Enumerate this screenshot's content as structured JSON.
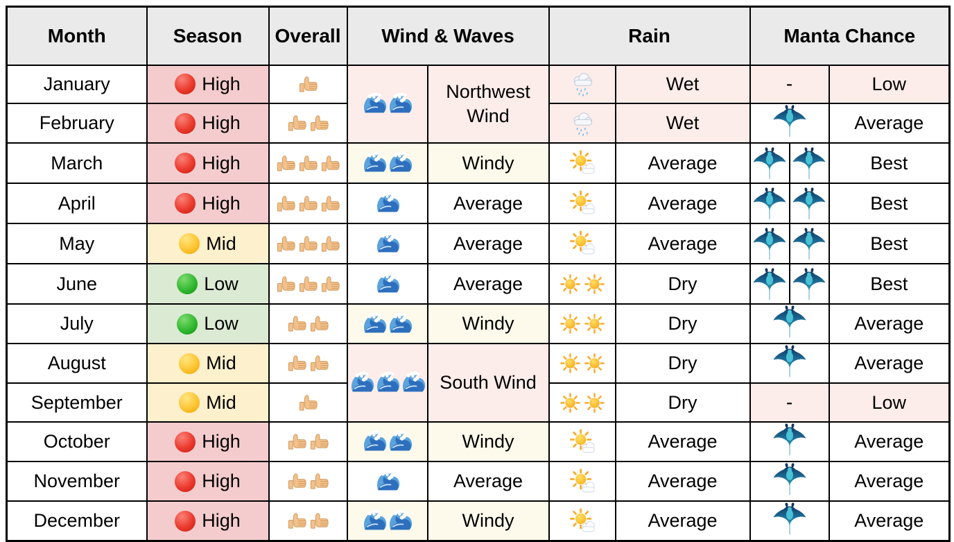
{
  "chart_data": {
    "type": "table",
    "columns": [
      "Month",
      "Season",
      "Overall",
      "Wind & Waves",
      "Rain",
      "Manta Chance"
    ],
    "rows": [
      [
        "January",
        "High",
        "1 thumb",
        "2 waves - Northwest Wind",
        "Wet",
        "Low (-)"
      ],
      [
        "February",
        "High",
        "2 thumbs",
        "2 waves - Northwest Wind",
        "Wet",
        "Average (1 manta)"
      ],
      [
        "March",
        "High",
        "3 thumbs",
        "2 waves - Windy",
        "Average",
        "Best (2 mantas)"
      ],
      [
        "April",
        "High",
        "3 thumbs",
        "1 wave - Average",
        "Average",
        "Best (2 mantas)"
      ],
      [
        "May",
        "Mid",
        "3 thumbs",
        "1 wave - Average",
        "Average",
        "Best (2 mantas)"
      ],
      [
        "June",
        "Low",
        "3 thumbs",
        "1 wave - Average",
        "Dry",
        "Best (2 mantas)"
      ],
      [
        "July",
        "Low",
        "2 thumbs",
        "2 waves - Windy",
        "Dry",
        "Average (1 manta)"
      ],
      [
        "August",
        "Mid",
        "2 thumbs",
        "3 waves - South Wind",
        "Dry",
        "Average (1 manta)"
      ],
      [
        "September",
        "Mid",
        "1 thumb",
        "3 waves - South Wind",
        "Dry",
        "Low (-)"
      ],
      [
        "October",
        "High",
        "2 thumbs",
        "2 waves - Windy",
        "Average",
        "Average (1 manta)"
      ],
      [
        "November",
        "High",
        "2 thumbs",
        "1 wave - Average",
        "Average",
        "Average (1 manta)"
      ],
      [
        "December",
        "High",
        "2 thumbs",
        "2 waves - Windy",
        "Average",
        "Average (1 manta)"
      ]
    ]
  },
  "table": {
    "headers": [
      {
        "label": "Month"
      },
      {
        "label": "Season"
      },
      {
        "label": "Overall"
      },
      {
        "label": "Wind & Waves"
      },
      {
        "label": "Rain"
      },
      {
        "label": "Manta Chance"
      }
    ],
    "colors": {
      "header_bg": "#eaeaea",
      "border": "#000000",
      "season_bg": {
        "High": "#f4cccd",
        "Mid": "#fdf0cd",
        "Low": "#dbead3"
      },
      "season_dot": {
        "High": "#e02b20",
        "Mid": "#fcc12c",
        "Low": "#28b428"
      },
      "tint_pink": "#fcedea",
      "tint_cream": "#fdfaeb"
    },
    "icon_names": {
      "High": "red-circle-icon",
      "Mid": "yellow-circle-icon",
      "Low": "green-circle-icon",
      "overall": "thumbs-up-icon",
      "wave": "water-wave-icon",
      "wet": "rain-cloud-icon",
      "average_rain": "sun-behind-cloud-icon",
      "dry": "sun-icon",
      "manta": "manta-ray-icon"
    },
    "rows": [
      {
        "month": "January",
        "season": "High",
        "overall": 1,
        "wind": {
          "span": 2,
          "waves": 2,
          "label": "Northwest Wind",
          "tint": "pink"
        },
        "rain": {
          "icon": "wet",
          "label": "Wet",
          "tint": "pink"
        },
        "manta": {
          "count": 0,
          "placeholder": "-",
          "label": "Low",
          "tint": "pink"
        }
      },
      {
        "month": "February",
        "season": "High",
        "overall": 2,
        "wind": null,
        "rain": {
          "icon": "wet",
          "label": "Wet",
          "tint": "pink"
        },
        "manta": {
          "count": 1,
          "label": "Average"
        }
      },
      {
        "month": "March",
        "season": "High",
        "overall": 3,
        "wind": {
          "span": 1,
          "waves": 2,
          "label": "Windy",
          "tint": "cream"
        },
        "rain": {
          "icon": "average_rain",
          "label": "Average"
        },
        "manta": {
          "count": 2,
          "label": "Best"
        }
      },
      {
        "month": "April",
        "season": "High",
        "overall": 3,
        "wind": {
          "span": 1,
          "waves": 1,
          "label": "Average"
        },
        "rain": {
          "icon": "average_rain",
          "label": "Average"
        },
        "manta": {
          "count": 2,
          "label": "Best"
        }
      },
      {
        "month": "May",
        "season": "Mid",
        "overall": 3,
        "wind": {
          "span": 1,
          "waves": 1,
          "label": "Average"
        },
        "rain": {
          "icon": "average_rain",
          "label": "Average"
        },
        "manta": {
          "count": 2,
          "label": "Best"
        }
      },
      {
        "month": "June",
        "season": "Low",
        "overall": 3,
        "wind": {
          "span": 1,
          "waves": 1,
          "label": "Average"
        },
        "rain": {
          "icon": "dry",
          "suns": 2,
          "label": "Dry"
        },
        "manta": {
          "count": 2,
          "label": "Best"
        }
      },
      {
        "month": "July",
        "season": "Low",
        "overall": 2,
        "wind": {
          "span": 1,
          "waves": 2,
          "label": "Windy",
          "tint": "cream"
        },
        "rain": {
          "icon": "dry",
          "suns": 2,
          "label": "Dry"
        },
        "manta": {
          "count": 1,
          "label": "Average"
        }
      },
      {
        "month": "August",
        "season": "Mid",
        "overall": 2,
        "wind": {
          "span": 2,
          "waves": 3,
          "label": "South Wind",
          "tint": "pink"
        },
        "rain": {
          "icon": "dry",
          "suns": 2,
          "label": "Dry"
        },
        "manta": {
          "count": 1,
          "label": "Average"
        }
      },
      {
        "month": "September",
        "season": "Mid",
        "overall": 1,
        "wind": null,
        "rain": {
          "icon": "dry",
          "suns": 2,
          "label": "Dry"
        },
        "manta": {
          "count": 0,
          "placeholder": "-",
          "label": "Low",
          "tint": "pink"
        }
      },
      {
        "month": "October",
        "season": "High",
        "overall": 2,
        "wind": {
          "span": 1,
          "waves": 2,
          "label": "Windy",
          "tint": "cream"
        },
        "rain": {
          "icon": "average_rain",
          "label": "Average"
        },
        "manta": {
          "count": 1,
          "label": "Average"
        }
      },
      {
        "month": "November",
        "season": "High",
        "overall": 2,
        "wind": {
          "span": 1,
          "waves": 1,
          "label": "Average"
        },
        "rain": {
          "icon": "average_rain",
          "label": "Average"
        },
        "manta": {
          "count": 1,
          "label": "Average"
        }
      },
      {
        "month": "December",
        "season": "High",
        "overall": 2,
        "wind": {
          "span": 1,
          "waves": 2,
          "label": "Windy",
          "tint": "cream"
        },
        "rain": {
          "icon": "average_rain",
          "label": "Average"
        },
        "manta": {
          "count": 1,
          "label": "Average"
        }
      }
    ]
  }
}
